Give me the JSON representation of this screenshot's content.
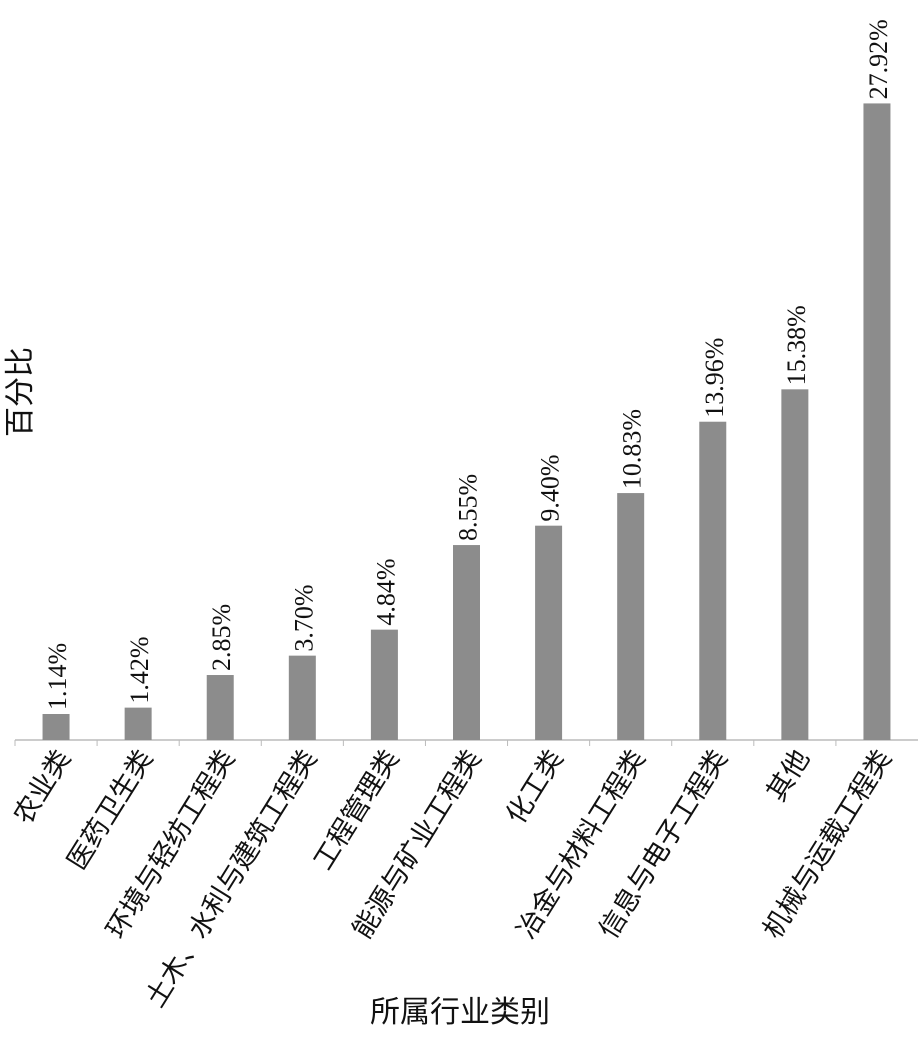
{
  "chart_data": {
    "type": "bar",
    "x_label": "所属行业类别",
    "y_label": "百分比",
    "categories": [
      "农业类",
      "医药卫生类",
      "环境与轻纺工程类",
      "土木、水利与建筑工程类",
      "工程管理类",
      "能源与矿业工程类",
      "化工类",
      "冶金与材料工程类",
      "信息与电子工程类",
      "其他",
      "机械与运载工程类"
    ],
    "values": [
      1.14,
      1.42,
      2.85,
      3.7,
      4.84,
      8.55,
      9.4,
      10.83,
      13.96,
      15.38,
      27.92
    ],
    "value_labels": [
      "1.14%",
      "1.42%",
      "2.85%",
      "3.70%",
      "4.84%",
      "8.55%",
      "9.40%",
      "10.83%",
      "13.96%",
      "15.38%",
      "27.92%"
    ],
    "color": "#8c8c8c",
    "ylim": [
      0,
      30
    ]
  }
}
